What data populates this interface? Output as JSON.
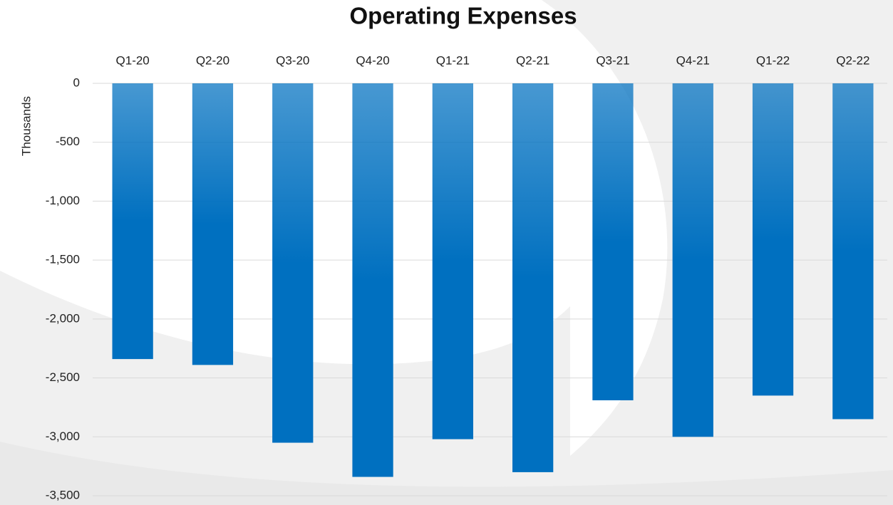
{
  "chart_data": {
    "type": "bar",
    "title": "Operating Expenses",
    "y_label": "Thousands",
    "categories": [
      "Q1-20",
      "Q2-20",
      "Q3-20",
      "Q4-20",
      "Q1-21",
      "Q2-21",
      "Q3-21",
      "Q4-21",
      "Q1-22",
      "Q2-22"
    ],
    "values": [
      -2340,
      -2390,
      -3050,
      -3340,
      -3020,
      -3300,
      -2690,
      -3000,
      -2650,
      -2850
    ],
    "color": "#0070c0",
    "ylim": [
      -3500,
      0
    ],
    "yticks": [
      0,
      -500,
      {
        "value": -1000,
        "label": "-1,000"
      },
      {
        "value": -1500,
        "label": "-1,500"
      },
      {
        "value": -2000,
        "label": "-2,000"
      },
      {
        "value": -2500,
        "label": "-2,500"
      },
      {
        "value": -3000,
        "label": "-3,000"
      },
      {
        "value": -3500,
        "label": "-3,500"
      }
    ],
    "grid": true
  }
}
